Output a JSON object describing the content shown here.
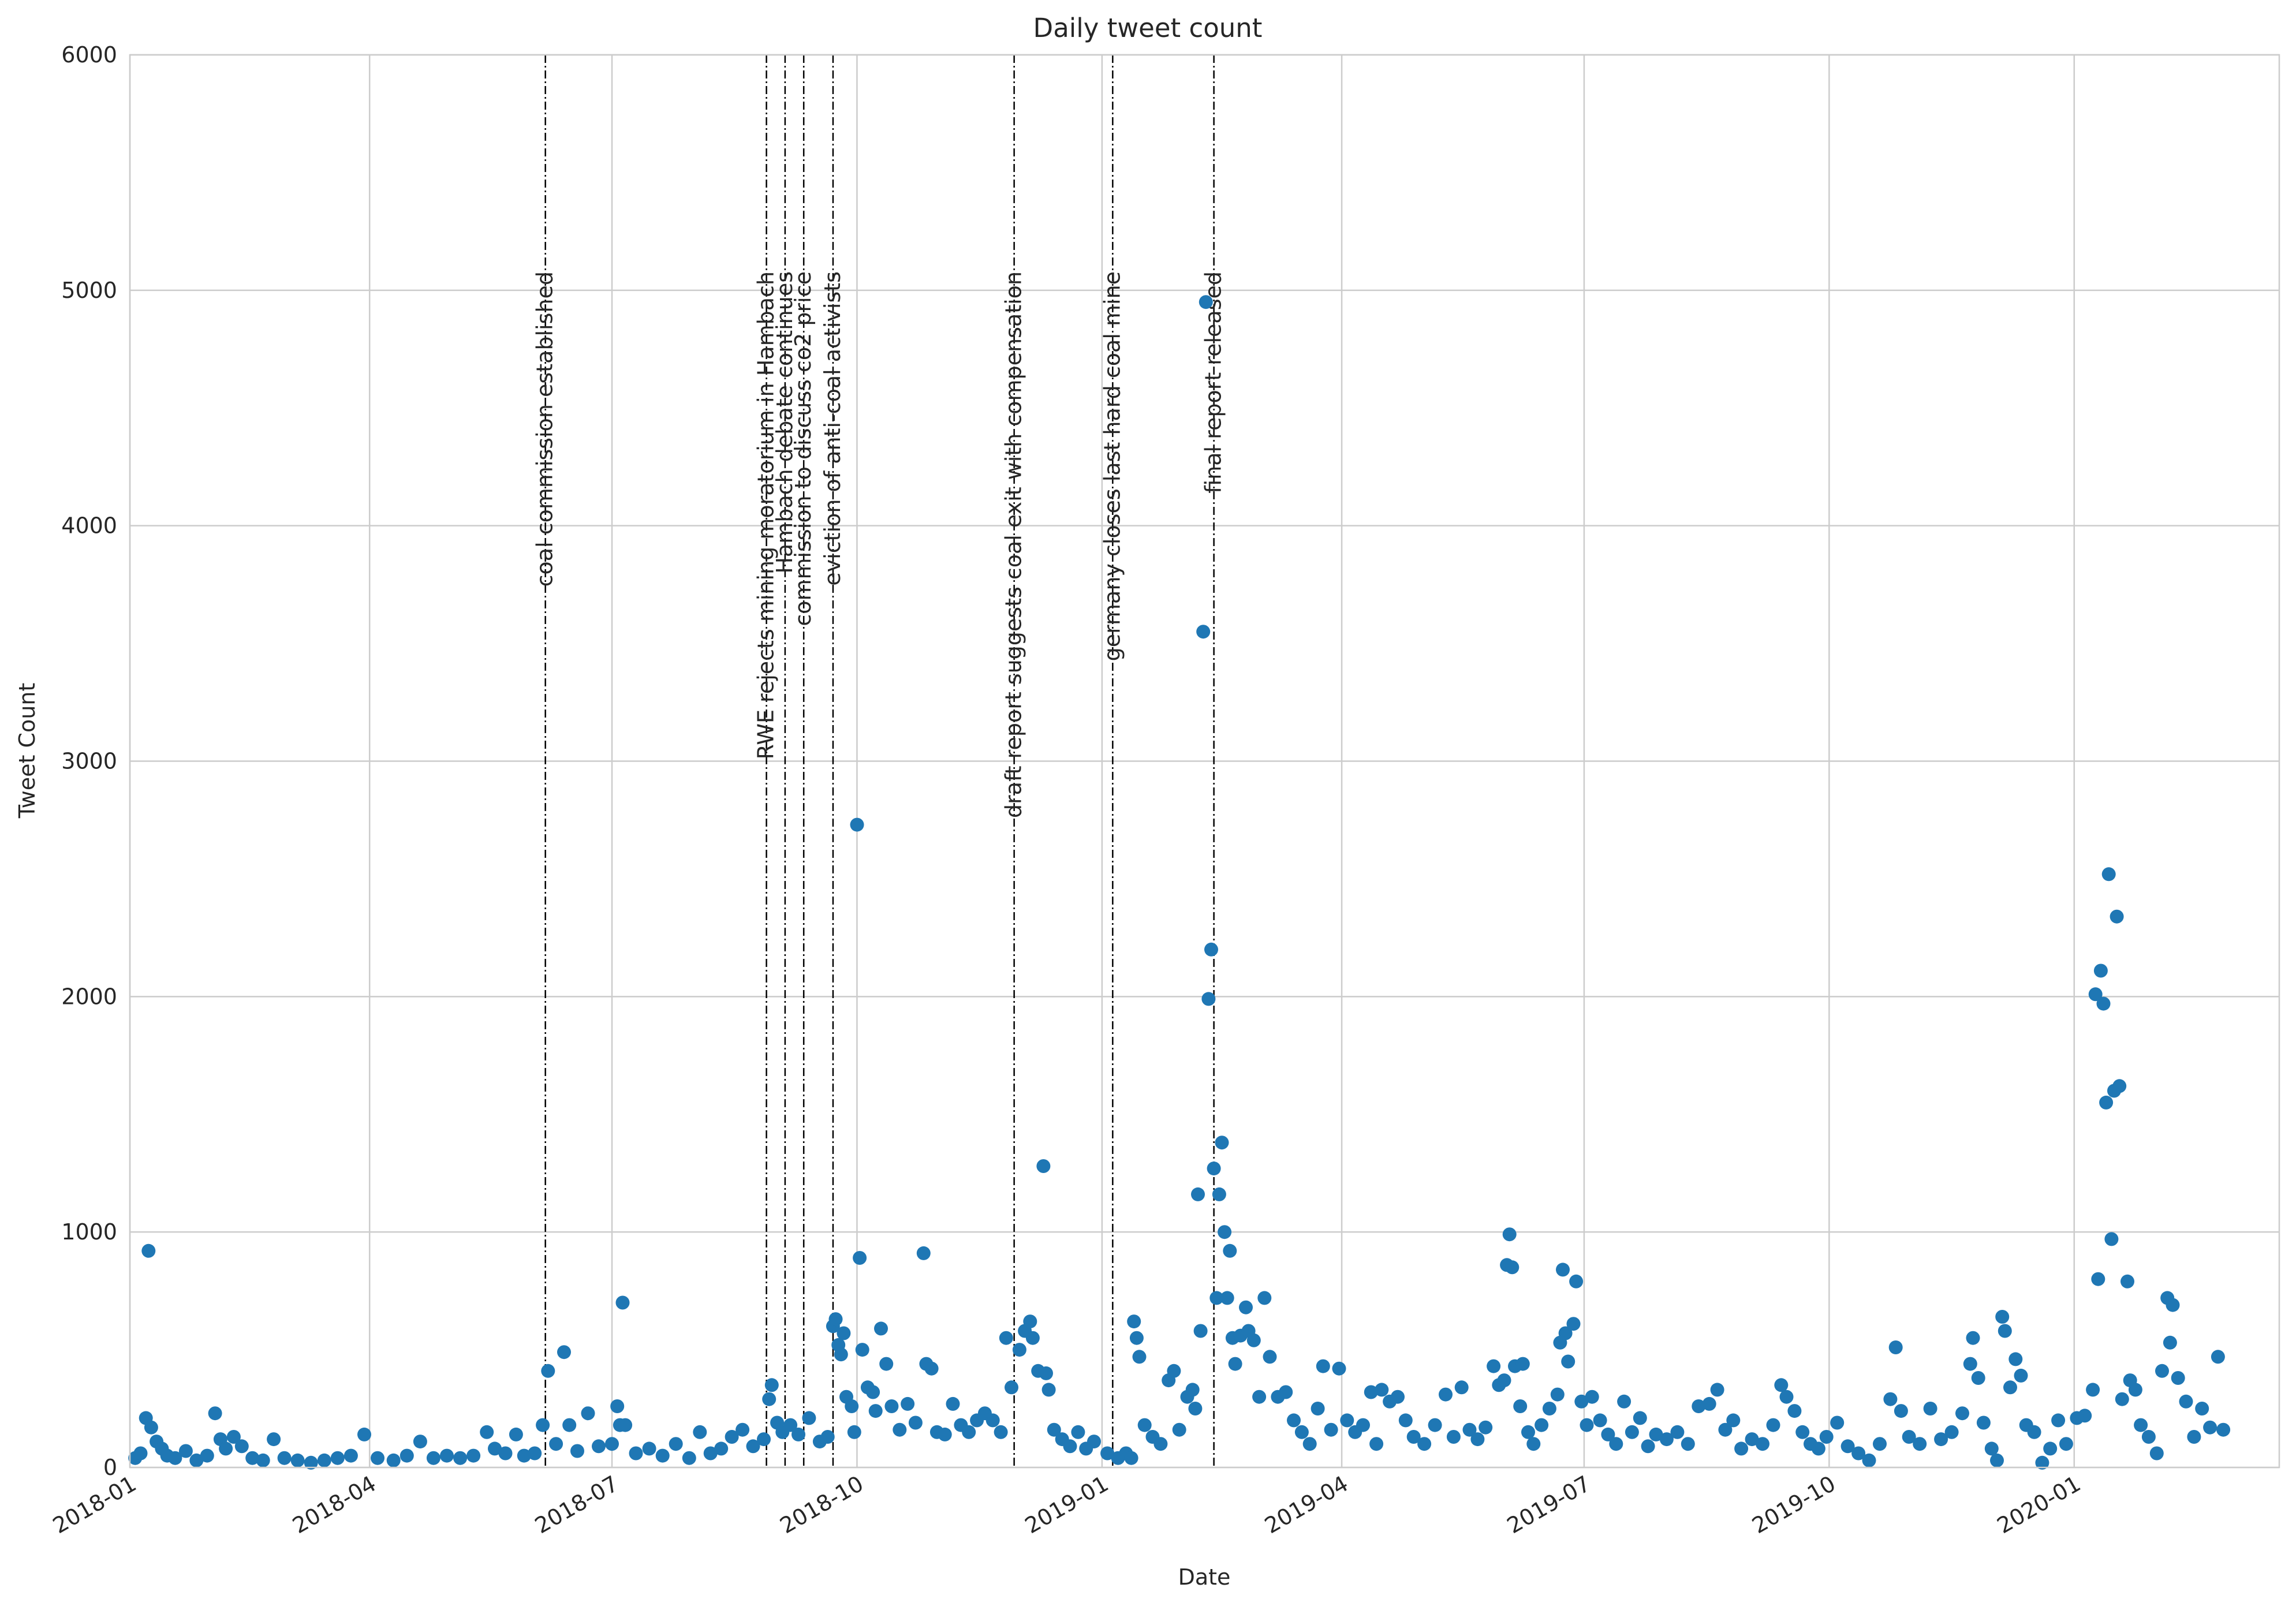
{
  "chart_data": {
    "type": "scatter",
    "title": "Daily tweet count",
    "xlabel": "Date",
    "ylabel": "Tweet Count",
    "xlim": [
      "2018-01-01",
      "2020-03-18"
    ],
    "ylim": [
      0,
      6000
    ],
    "x_ticks": [
      "2018-01",
      "2018-04",
      "2018-07",
      "2018-10",
      "2019-01",
      "2019-04",
      "2019-07",
      "2019-10",
      "2020-01"
    ],
    "y_ticks": [
      0,
      1000,
      2000,
      3000,
      4000,
      5000,
      6000
    ],
    "grid": true,
    "color": "#1f77b4",
    "events": [
      {
        "date": "2018-06-06",
        "label": "coal commission established"
      },
      {
        "date": "2018-08-28",
        "label": "RWE rejects mining moratorium in Hambach"
      },
      {
        "date": "2018-09-04",
        "label": "Hambach debate continues"
      },
      {
        "date": "2018-09-11",
        "label": "commission to discuss co2 price"
      },
      {
        "date": "2018-09-22",
        "label": "eviction of anti-coal activists"
      },
      {
        "date": "2018-11-29",
        "label": "draft report suggests coal exit with compensation"
      },
      {
        "date": "2019-01-05",
        "label": "germany closes last hard coal mine"
      },
      {
        "date": "2019-02-12",
        "label": "final report released"
      }
    ],
    "points": [
      {
        "x": "2018-01-03",
        "y": 40
      },
      {
        "x": "2018-01-05",
        "y": 60
      },
      {
        "x": "2018-01-07",
        "y": 210
      },
      {
        "x": "2018-01-08",
        "y": 920
      },
      {
        "x": "2018-01-09",
        "y": 170
      },
      {
        "x": "2018-01-11",
        "y": 110
      },
      {
        "x": "2018-01-13",
        "y": 80
      },
      {
        "x": "2018-01-15",
        "y": 50
      },
      {
        "x": "2018-01-18",
        "y": 40
      },
      {
        "x": "2018-01-22",
        "y": 70
      },
      {
        "x": "2018-01-26",
        "y": 30
      },
      {
        "x": "2018-01-30",
        "y": 50
      },
      {
        "x": "2018-02-02",
        "y": 230
      },
      {
        "x": "2018-02-04",
        "y": 120
      },
      {
        "x": "2018-02-06",
        "y": 80
      },
      {
        "x": "2018-02-09",
        "y": 130
      },
      {
        "x": "2018-02-12",
        "y": 90
      },
      {
        "x": "2018-02-16",
        "y": 40
      },
      {
        "x": "2018-02-20",
        "y": 30
      },
      {
        "x": "2018-02-24",
        "y": 120
      },
      {
        "x": "2018-02-28",
        "y": 40
      },
      {
        "x": "2018-03-05",
        "y": 30
      },
      {
        "x": "2018-03-10",
        "y": 20
      },
      {
        "x": "2018-03-15",
        "y": 30
      },
      {
        "x": "2018-03-20",
        "y": 40
      },
      {
        "x": "2018-03-25",
        "y": 50
      },
      {
        "x": "2018-03-30",
        "y": 140
      },
      {
        "x": "2018-04-04",
        "y": 40
      },
      {
        "x": "2018-04-10",
        "y": 30
      },
      {
        "x": "2018-04-15",
        "y": 50
      },
      {
        "x": "2018-04-20",
        "y": 110
      },
      {
        "x": "2018-04-25",
        "y": 40
      },
      {
        "x": "2018-04-30",
        "y": 50
      },
      {
        "x": "2018-05-05",
        "y": 40
      },
      {
        "x": "2018-05-10",
        "y": 50
      },
      {
        "x": "2018-05-15",
        "y": 150
      },
      {
        "x": "2018-05-18",
        "y": 80
      },
      {
        "x": "2018-05-22",
        "y": 60
      },
      {
        "x": "2018-05-26",
        "y": 140
      },
      {
        "x": "2018-05-29",
        "y": 50
      },
      {
        "x": "2018-06-02",
        "y": 60
      },
      {
        "x": "2018-06-05",
        "y": 180
      },
      {
        "x": "2018-06-07",
        "y": 410
      },
      {
        "x": "2018-06-10",
        "y": 100
      },
      {
        "x": "2018-06-13",
        "y": 490
      },
      {
        "x": "2018-06-15",
        "y": 180
      },
      {
        "x": "2018-06-18",
        "y": 70
      },
      {
        "x": "2018-06-22",
        "y": 230
      },
      {
        "x": "2018-06-26",
        "y": 90
      },
      {
        "x": "2018-07-01",
        "y": 100
      },
      {
        "x": "2018-07-03",
        "y": 260
      },
      {
        "x": "2018-07-04",
        "y": 180
      },
      {
        "x": "2018-07-05",
        "y": 700
      },
      {
        "x": "2018-07-06",
        "y": 180
      },
      {
        "x": "2018-07-10",
        "y": 60
      },
      {
        "x": "2018-07-15",
        "y": 80
      },
      {
        "x": "2018-07-20",
        "y": 50
      },
      {
        "x": "2018-07-25",
        "y": 100
      },
      {
        "x": "2018-07-30",
        "y": 40
      },
      {
        "x": "2018-08-03",
        "y": 150
      },
      {
        "x": "2018-08-07",
        "y": 60
      },
      {
        "x": "2018-08-11",
        "y": 80
      },
      {
        "x": "2018-08-15",
        "y": 130
      },
      {
        "x": "2018-08-19",
        "y": 160
      },
      {
        "x": "2018-08-23",
        "y": 90
      },
      {
        "x": "2018-08-27",
        "y": 120
      },
      {
        "x": "2018-08-29",
        "y": 290
      },
      {
        "x": "2018-08-30",
        "y": 350
      },
      {
        "x": "2018-09-01",
        "y": 190
      },
      {
        "x": "2018-09-03",
        "y": 150
      },
      {
        "x": "2018-09-06",
        "y": 180
      },
      {
        "x": "2018-09-09",
        "y": 140
      },
      {
        "x": "2018-09-13",
        "y": 210
      },
      {
        "x": "2018-09-17",
        "y": 110
      },
      {
        "x": "2018-09-20",
        "y": 130
      },
      {
        "x": "2018-09-22",
        "y": 600
      },
      {
        "x": "2018-09-23",
        "y": 630
      },
      {
        "x": "2018-09-24",
        "y": 520
      },
      {
        "x": "2018-09-25",
        "y": 480
      },
      {
        "x": "2018-09-26",
        "y": 570
      },
      {
        "x": "2018-09-27",
        "y": 300
      },
      {
        "x": "2018-09-29",
        "y": 260
      },
      {
        "x": "2018-09-30",
        "y": 150
      },
      {
        "x": "2018-10-01",
        "y": 2730
      },
      {
        "x": "2018-10-02",
        "y": 890
      },
      {
        "x": "2018-10-03",
        "y": 500
      },
      {
        "x": "2018-10-05",
        "y": 340
      },
      {
        "x": "2018-10-07",
        "y": 320
      },
      {
        "x": "2018-10-08",
        "y": 240
      },
      {
        "x": "2018-10-10",
        "y": 590
      },
      {
        "x": "2018-10-12",
        "y": 440
      },
      {
        "x": "2018-10-14",
        "y": 260
      },
      {
        "x": "2018-10-17",
        "y": 160
      },
      {
        "x": "2018-10-20",
        "y": 270
      },
      {
        "x": "2018-10-23",
        "y": 190
      },
      {
        "x": "2018-10-26",
        "y": 910
      },
      {
        "x": "2018-10-27",
        "y": 440
      },
      {
        "x": "2018-10-29",
        "y": 420
      },
      {
        "x": "2018-10-31",
        "y": 150
      },
      {
        "x": "2018-11-03",
        "y": 140
      },
      {
        "x": "2018-11-06",
        "y": 270
      },
      {
        "x": "2018-11-09",
        "y": 180
      },
      {
        "x": "2018-11-12",
        "y": 150
      },
      {
        "x": "2018-11-15",
        "y": 200
      },
      {
        "x": "2018-11-18",
        "y": 230
      },
      {
        "x": "2018-11-21",
        "y": 200
      },
      {
        "x": "2018-11-24",
        "y": 150
      },
      {
        "x": "2018-11-26",
        "y": 550
      },
      {
        "x": "2018-11-28",
        "y": 340
      },
      {
        "x": "2018-12-01",
        "y": 500
      },
      {
        "x": "2018-12-03",
        "y": 580
      },
      {
        "x": "2018-12-05",
        "y": 620
      },
      {
        "x": "2018-12-06",
        "y": 550
      },
      {
        "x": "2018-12-08",
        "y": 410
      },
      {
        "x": "2018-12-10",
        "y": 1280
      },
      {
        "x": "2018-12-11",
        "y": 400
      },
      {
        "x": "2018-12-12",
        "y": 330
      },
      {
        "x": "2018-12-14",
        "y": 160
      },
      {
        "x": "2018-12-17",
        "y": 120
      },
      {
        "x": "2018-12-20",
        "y": 90
      },
      {
        "x": "2018-12-23",
        "y": 150
      },
      {
        "x": "2018-12-26",
        "y": 80
      },
      {
        "x": "2018-12-29",
        "y": 110
      },
      {
        "x": "2019-01-03",
        "y": 60
      },
      {
        "x": "2019-01-07",
        "y": 40
      },
      {
        "x": "2019-01-10",
        "y": 60
      },
      {
        "x": "2019-01-12",
        "y": 40
      },
      {
        "x": "2019-01-13",
        "y": 620
      },
      {
        "x": "2019-01-14",
        "y": 550
      },
      {
        "x": "2019-01-15",
        "y": 470
      },
      {
        "x": "2019-01-17",
        "y": 180
      },
      {
        "x": "2019-01-20",
        "y": 130
      },
      {
        "x": "2019-01-23",
        "y": 100
      },
      {
        "x": "2019-01-26",
        "y": 370
      },
      {
        "x": "2019-01-28",
        "y": 410
      },
      {
        "x": "2019-01-30",
        "y": 160
      },
      {
        "x": "2019-02-02",
        "y": 300
      },
      {
        "x": "2019-02-04",
        "y": 330
      },
      {
        "x": "2019-02-05",
        "y": 250
      },
      {
        "x": "2019-02-06",
        "y": 1160
      },
      {
        "x": "2019-02-07",
        "y": 580
      },
      {
        "x": "2019-02-08",
        "y": 3550
      },
      {
        "x": "2019-02-09",
        "y": 4950
      },
      {
        "x": "2019-02-10",
        "y": 1990
      },
      {
        "x": "2019-02-11",
        "y": 2200
      },
      {
        "x": "2019-02-12",
        "y": 1270
      },
      {
        "x": "2019-02-13",
        "y": 720
      },
      {
        "x": "2019-02-14",
        "y": 1160
      },
      {
        "x": "2019-02-15",
        "y": 1380
      },
      {
        "x": "2019-02-16",
        "y": 1000
      },
      {
        "x": "2019-02-17",
        "y": 720
      },
      {
        "x": "2019-02-18",
        "y": 920
      },
      {
        "x": "2019-02-19",
        "y": 550
      },
      {
        "x": "2019-02-20",
        "y": 440
      },
      {
        "x": "2019-02-22",
        "y": 560
      },
      {
        "x": "2019-02-24",
        "y": 680
      },
      {
        "x": "2019-02-25",
        "y": 580
      },
      {
        "x": "2019-02-27",
        "y": 540
      },
      {
        "x": "2019-03-01",
        "y": 300
      },
      {
        "x": "2019-03-03",
        "y": 720
      },
      {
        "x": "2019-03-05",
        "y": 470
      },
      {
        "x": "2019-03-08",
        "y": 300
      },
      {
        "x": "2019-03-11",
        "y": 320
      },
      {
        "x": "2019-03-14",
        "y": 200
      },
      {
        "x": "2019-03-17",
        "y": 150
      },
      {
        "x": "2019-03-20",
        "y": 100
      },
      {
        "x": "2019-03-23",
        "y": 250
      },
      {
        "x": "2019-03-25",
        "y": 430
      },
      {
        "x": "2019-03-28",
        "y": 160
      },
      {
        "x": "2019-03-31",
        "y": 420
      },
      {
        "x": "2019-04-03",
        "y": 200
      },
      {
        "x": "2019-04-06",
        "y": 150
      },
      {
        "x": "2019-04-09",
        "y": 180
      },
      {
        "x": "2019-04-12",
        "y": 320
      },
      {
        "x": "2019-04-14",
        "y": 100
      },
      {
        "x": "2019-04-16",
        "y": 330
      },
      {
        "x": "2019-04-19",
        "y": 280
      },
      {
        "x": "2019-04-22",
        "y": 300
      },
      {
        "x": "2019-04-25",
        "y": 200
      },
      {
        "x": "2019-04-28",
        "y": 130
      },
      {
        "x": "2019-05-02",
        "y": 100
      },
      {
        "x": "2019-05-06",
        "y": 180
      },
      {
        "x": "2019-05-10",
        "y": 310
      },
      {
        "x": "2019-05-13",
        "y": 130
      },
      {
        "x": "2019-05-16",
        "y": 340
      },
      {
        "x": "2019-05-19",
        "y": 160
      },
      {
        "x": "2019-05-22",
        "y": 120
      },
      {
        "x": "2019-05-25",
        "y": 170
      },
      {
        "x": "2019-05-28",
        "y": 430
      },
      {
        "x": "2019-05-30",
        "y": 350
      },
      {
        "x": "2019-06-01",
        "y": 370
      },
      {
        "x": "2019-06-02",
        "y": 860
      },
      {
        "x": "2019-06-03",
        "y": 990
      },
      {
        "x": "2019-06-04",
        "y": 850
      },
      {
        "x": "2019-06-05",
        "y": 430
      },
      {
        "x": "2019-06-07",
        "y": 260
      },
      {
        "x": "2019-06-08",
        "y": 440
      },
      {
        "x": "2019-06-10",
        "y": 150
      },
      {
        "x": "2019-06-12",
        "y": 100
      },
      {
        "x": "2019-06-15",
        "y": 180
      },
      {
        "x": "2019-06-18",
        "y": 250
      },
      {
        "x": "2019-06-21",
        "y": 310
      },
      {
        "x": "2019-06-22",
        "y": 530
      },
      {
        "x": "2019-06-23",
        "y": 840
      },
      {
        "x": "2019-06-24",
        "y": 570
      },
      {
        "x": "2019-06-25",
        "y": 450
      },
      {
        "x": "2019-06-27",
        "y": 610
      },
      {
        "x": "2019-06-28",
        "y": 790
      },
      {
        "x": "2019-06-30",
        "y": 280
      },
      {
        "x": "2019-07-02",
        "y": 180
      },
      {
        "x": "2019-07-04",
        "y": 300
      },
      {
        "x": "2019-07-07",
        "y": 200
      },
      {
        "x": "2019-07-10",
        "y": 140
      },
      {
        "x": "2019-07-13",
        "y": 100
      },
      {
        "x": "2019-07-16",
        "y": 280
      },
      {
        "x": "2019-07-19",
        "y": 150
      },
      {
        "x": "2019-07-22",
        "y": 210
      },
      {
        "x": "2019-07-25",
        "y": 90
      },
      {
        "x": "2019-07-28",
        "y": 140
      },
      {
        "x": "2019-08-01",
        "y": 120
      },
      {
        "x": "2019-08-05",
        "y": 150
      },
      {
        "x": "2019-08-09",
        "y": 100
      },
      {
        "x": "2019-08-13",
        "y": 260
      },
      {
        "x": "2019-08-17",
        "y": 270
      },
      {
        "x": "2019-08-20",
        "y": 330
      },
      {
        "x": "2019-08-23",
        "y": 160
      },
      {
        "x": "2019-08-26",
        "y": 200
      },
      {
        "x": "2019-08-29",
        "y": 80
      },
      {
        "x": "2019-09-02",
        "y": 120
      },
      {
        "x": "2019-09-06",
        "y": 100
      },
      {
        "x": "2019-09-10",
        "y": 180
      },
      {
        "x": "2019-09-13",
        "y": 350
      },
      {
        "x": "2019-09-15",
        "y": 300
      },
      {
        "x": "2019-09-18",
        "y": 240
      },
      {
        "x": "2019-09-21",
        "y": 150
      },
      {
        "x": "2019-09-24",
        "y": 100
      },
      {
        "x": "2019-09-27",
        "y": 80
      },
      {
        "x": "2019-09-30",
        "y": 130
      },
      {
        "x": "2019-10-04",
        "y": 190
      },
      {
        "x": "2019-10-08",
        "y": 90
      },
      {
        "x": "2019-10-12",
        "y": 60
      },
      {
        "x": "2019-10-16",
        "y": 30
      },
      {
        "x": "2019-10-20",
        "y": 100
      },
      {
        "x": "2019-10-24",
        "y": 290
      },
      {
        "x": "2019-10-26",
        "y": 510
      },
      {
        "x": "2019-10-28",
        "y": 240
      },
      {
        "x": "2019-10-31",
        "y": 130
      },
      {
        "x": "2019-11-04",
        "y": 100
      },
      {
        "x": "2019-11-08",
        "y": 250
      },
      {
        "x": "2019-11-12",
        "y": 120
      },
      {
        "x": "2019-11-16",
        "y": 150
      },
      {
        "x": "2019-11-20",
        "y": 230
      },
      {
        "x": "2019-11-23",
        "y": 440
      },
      {
        "x": "2019-11-24",
        "y": 550
      },
      {
        "x": "2019-11-26",
        "y": 380
      },
      {
        "x": "2019-11-28",
        "y": 190
      },
      {
        "x": "2019-12-01",
        "y": 80
      },
      {
        "x": "2019-12-03",
        "y": 30
      },
      {
        "x": "2019-12-05",
        "y": 640
      },
      {
        "x": "2019-12-06",
        "y": 580
      },
      {
        "x": "2019-12-08",
        "y": 340
      },
      {
        "x": "2019-12-10",
        "y": 460
      },
      {
        "x": "2019-12-12",
        "y": 390
      },
      {
        "x": "2019-12-14",
        "y": 180
      },
      {
        "x": "2019-12-17",
        "y": 150
      },
      {
        "x": "2019-12-20",
        "y": 20
      },
      {
        "x": "2019-12-23",
        "y": 80
      },
      {
        "x": "2019-12-26",
        "y": 200
      },
      {
        "x": "2019-12-29",
        "y": 100
      },
      {
        "x": "2020-01-02",
        "y": 210
      },
      {
        "x": "2020-01-05",
        "y": 220
      },
      {
        "x": "2020-01-08",
        "y": 330
      },
      {
        "x": "2020-01-09",
        "y": 2010
      },
      {
        "x": "2020-01-10",
        "y": 800
      },
      {
        "x": "2020-01-11",
        "y": 2110
      },
      {
        "x": "2020-01-12",
        "y": 1970
      },
      {
        "x": "2020-01-13",
        "y": 1550
      },
      {
        "x": "2020-01-14",
        "y": 2520
      },
      {
        "x": "2020-01-15",
        "y": 970
      },
      {
        "x": "2020-01-16",
        "y": 1600
      },
      {
        "x": "2020-01-17",
        "y": 2340
      },
      {
        "x": "2020-01-18",
        "y": 1620
      },
      {
        "x": "2020-01-19",
        "y": 290
      },
      {
        "x": "2020-01-21",
        "y": 790
      },
      {
        "x": "2020-01-22",
        "y": 370
      },
      {
        "x": "2020-01-24",
        "y": 330
      },
      {
        "x": "2020-01-26",
        "y": 180
      },
      {
        "x": "2020-01-29",
        "y": 130
      },
      {
        "x": "2020-02-01",
        "y": 60
      },
      {
        "x": "2020-02-03",
        "y": 410
      },
      {
        "x": "2020-02-05",
        "y": 720
      },
      {
        "x": "2020-02-06",
        "y": 530
      },
      {
        "x": "2020-02-07",
        "y": 690
      },
      {
        "x": "2020-02-09",
        "y": 380
      },
      {
        "x": "2020-02-12",
        "y": 280
      },
      {
        "x": "2020-02-15",
        "y": 130
      },
      {
        "x": "2020-02-18",
        "y": 250
      },
      {
        "x": "2020-02-21",
        "y": 170
      },
      {
        "x": "2020-02-24",
        "y": 470
      },
      {
        "x": "2020-02-26",
        "y": 160
      }
    ]
  }
}
